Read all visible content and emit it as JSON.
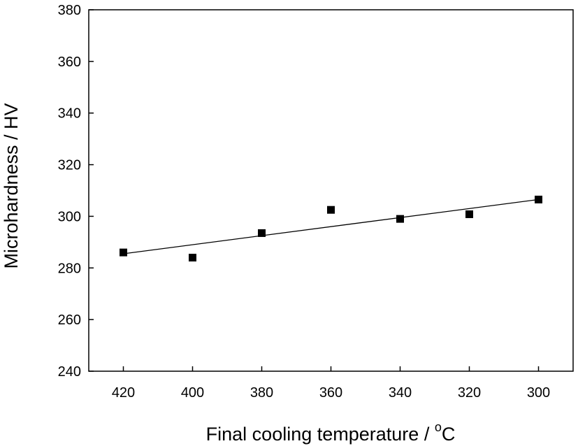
{
  "chart_data": {
    "type": "scatter",
    "xlabel": "Final cooling temperature / ",
    "xlabel_sup": "o",
    "xlabel_unit": "C",
    "ylabel": "Microhardness / HV",
    "xlim": [
      430,
      290
    ],
    "x_reversed": true,
    "ylim": [
      240,
      380
    ],
    "x_ticks": [
      420,
      400,
      380,
      360,
      340,
      320,
      300
    ],
    "y_ticks": [
      240,
      260,
      280,
      300,
      320,
      340,
      360,
      380
    ],
    "grid": false,
    "legend": "none",
    "series": [
      {
        "marker": "square",
        "color": "#000000",
        "x": [
          420,
          400,
          380,
          360,
          340,
          320,
          300
        ],
        "y": [
          286,
          284,
          293.5,
          302.5,
          299,
          300.8,
          306.5
        ]
      }
    ],
    "trendline": {
      "type": "linear",
      "color": "#000000",
      "x": [
        420,
        300
      ],
      "y": [
        285.5,
        306.5
      ]
    }
  }
}
